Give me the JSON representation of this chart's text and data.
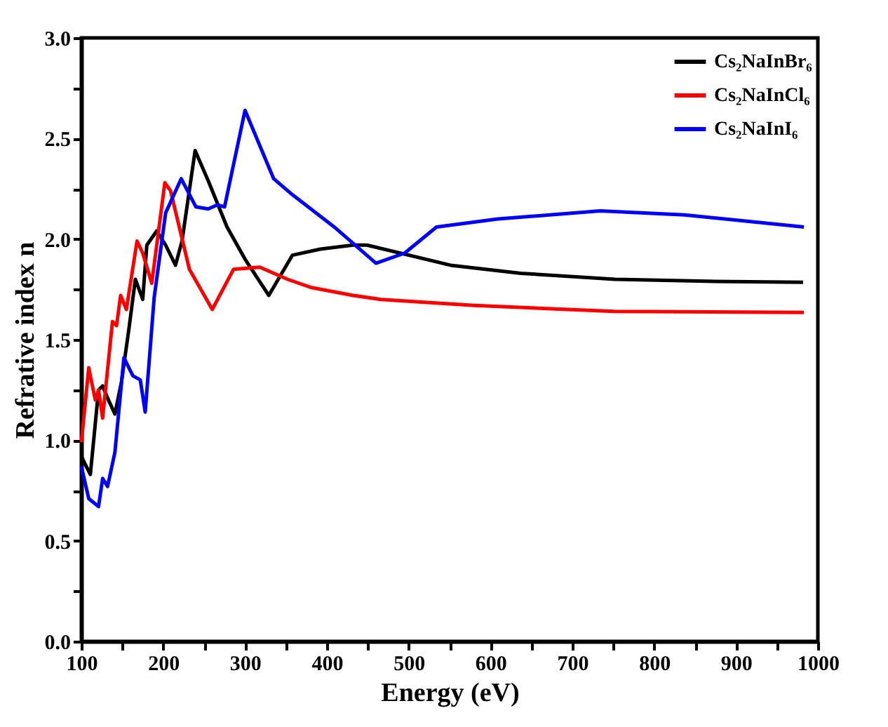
{
  "chart_data": {
    "type": "line",
    "xlabel": "Energy (eV)",
    "ylabel": "Refrative index n",
    "xlim": [
      100,
      1000
    ],
    "ylim": [
      0,
      3
    ],
    "xticks": [
      100,
      {
        "value": 150,
        "label": null
      },
      200,
      {
        "value": 250,
        "label": null
      },
      300,
      {
        "value": 350,
        "label": null
      },
      400,
      {
        "value": 450,
        "label": null
      },
      500,
      {
        "value": 550,
        "label": null
      },
      600,
      {
        "value": 650,
        "label": null
      },
      700,
      {
        "value": 750,
        "label": null
      },
      800,
      {
        "value": 850,
        "label": null
      },
      900,
      {
        "value": 950,
        "label": null
      },
      1000
    ],
    "yticks": [
      {
        "value": 0,
        "label": "0.0"
      },
      {
        "value": 0.25,
        "label": null
      },
      {
        "value": 0.5,
        "label": "0.5"
      },
      {
        "value": 0.75,
        "label": null
      },
      {
        "value": 1,
        "label": "1.0"
      },
      {
        "value": 1.25,
        "label": null
      },
      {
        "value": 1.5,
        "label": "1.5"
      },
      {
        "value": 1.75,
        "label": null
      },
      {
        "value": 2,
        "label": "2.0"
      },
      {
        "value": 2.25,
        "label": null
      },
      {
        "value": 2.5,
        "label": "2.5"
      },
      {
        "value": 2.75,
        "label": null
      },
      {
        "value": 3,
        "label": "3.0"
      }
    ],
    "grid": false,
    "legend": "top right",
    "line_style": "solid",
    "marker": "none",
    "series": [
      {
        "name": "Cs₂NaInBr₆",
        "color": "#000000",
        "x": [
          100,
          106,
          111,
          121,
          126,
          132,
          141,
          149,
          158,
          166,
          175,
          180,
          192,
          203,
          215,
          223,
          239,
          255,
          278,
          300,
          329,
          358,
          392,
          432,
          449,
          551,
          637,
          752,
          865,
          982
        ],
        "values": [
          0.92,
          0.87,
          0.83,
          1.25,
          1.27,
          1.21,
          1.13,
          1.29,
          1.55,
          1.8,
          1.7,
          1.97,
          2.04,
          1.97,
          1.87,
          1.99,
          2.44,
          2.29,
          2.06,
          1.9,
          1.72,
          1.92,
          1.95,
          1.97,
          1.97,
          1.87,
          1.83,
          1.8,
          1.79,
          1.785
        ]
      },
      {
        "name": "Cs₂NaInCl₆",
        "color": "#ff0000",
        "x": [
          100,
          109,
          117,
          121,
          126,
          138,
          143,
          148,
          155,
          168,
          175,
          186,
          202,
          209,
          232,
          260,
          286,
          318,
          352,
          380,
          432,
          466,
          580,
          751,
          983
        ],
        "values": [
          0.99,
          1.36,
          1.2,
          1.25,
          1.11,
          1.59,
          1.57,
          1.72,
          1.65,
          1.99,
          1.93,
          1.78,
          2.28,
          2.24,
          1.85,
          1.65,
          1.85,
          1.86,
          1.8,
          1.76,
          1.72,
          1.7,
          1.67,
          1.64,
          1.635
        ]
      },
      {
        "name": "Cs₂NaInI₆",
        "color": "#0000ff",
        "x": [
          100,
          109,
          121,
          126,
          132,
          141,
          152,
          163,
          172,
          178,
          189,
          203,
          222,
          240,
          255,
          266,
          275,
          300,
          335,
          358,
          409,
          460,
          495,
          534,
          609,
          734,
          837,
          983
        ],
        "values": [
          0.87,
          0.71,
          0.67,
          0.81,
          0.77,
          0.94,
          1.41,
          1.32,
          1.3,
          1.14,
          1.71,
          2.13,
          2.3,
          2.16,
          2.15,
          2.17,
          2.16,
          2.64,
          2.3,
          2.22,
          2.06,
          1.88,
          1.93,
          2.06,
          2.1,
          2.14,
          2.12,
          2.06
        ]
      }
    ]
  }
}
